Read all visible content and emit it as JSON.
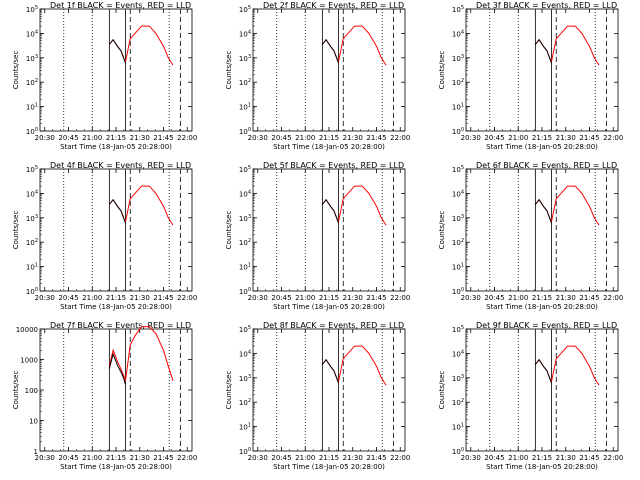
{
  "chart_data": {
    "type": "line",
    "ylabel": "Counts/sec",
    "yscale": "log",
    "x_ticks": [
      "20:30",
      "20:45",
      "21:00",
      "21:15",
      "21:30",
      "21:45",
      "22:00"
    ],
    "xlabel": "Start Time (18-Jan-05 20:28:00)",
    "colors": {
      "events": "#000000",
      "lld": "#ff0000"
    },
    "panels": [
      {
        "title": "Det 1f BLACK = Events, RED = LLD",
        "ylim": [
          1,
          100000
        ],
        "y_ticks": [
          "10^0",
          "10^1",
          "10^2",
          "10^3",
          "10^4",
          "10^5"
        ],
        "events": [
          [
            21.18,
            3500
          ],
          [
            21.22,
            5500
          ],
          [
            21.27,
            2800
          ],
          [
            21.3,
            2000
          ],
          [
            21.33,
            1000
          ],
          [
            21.35,
            600
          ]
        ],
        "lld": [
          [
            21.18,
            3500
          ],
          [
            21.22,
            5500
          ],
          [
            21.27,
            2800
          ],
          [
            21.3,
            2000
          ],
          [
            21.33,
            1000
          ],
          [
            21.35,
            700
          ],
          [
            21.4,
            6000
          ],
          [
            21.45,
            10000
          ],
          [
            21.52,
            20000
          ],
          [
            21.6,
            20000
          ],
          [
            21.67,
            10000
          ],
          [
            21.75,
            3000
          ],
          [
            21.8,
            1000
          ],
          [
            21.85,
            500
          ]
        ]
      },
      {
        "title": "Det 2f BLACK = Events, RED = LLD",
        "ylim": [
          1,
          100000
        ],
        "y_ticks": [
          "10^0",
          "10^1",
          "10^2",
          "10^3",
          "10^4",
          "10^5"
        ],
        "events": [
          [
            21.18,
            3500
          ],
          [
            21.22,
            5500
          ],
          [
            21.27,
            2800
          ],
          [
            21.3,
            2000
          ],
          [
            21.33,
            1000
          ],
          [
            21.35,
            600
          ]
        ],
        "lld": [
          [
            21.18,
            3500
          ],
          [
            21.22,
            5500
          ],
          [
            21.27,
            2800
          ],
          [
            21.3,
            2000
          ],
          [
            21.33,
            1000
          ],
          [
            21.35,
            700
          ],
          [
            21.4,
            6000
          ],
          [
            21.45,
            10000
          ],
          [
            21.52,
            20000
          ],
          [
            21.6,
            20000
          ],
          [
            21.67,
            10000
          ],
          [
            21.75,
            3000
          ],
          [
            21.8,
            1000
          ],
          [
            21.85,
            500
          ]
        ]
      },
      {
        "title": "Det 3f BLACK = Events, RED = LLD",
        "ylim": [
          1,
          100000
        ],
        "y_ticks": [
          "10^0",
          "10^1",
          "10^2",
          "10^3",
          "10^4",
          "10^5"
        ],
        "events": [
          [
            21.18,
            3500
          ],
          [
            21.22,
            5500
          ],
          [
            21.27,
            2800
          ],
          [
            21.3,
            2000
          ],
          [
            21.33,
            1000
          ],
          [
            21.35,
            600
          ]
        ],
        "lld": [
          [
            21.18,
            3500
          ],
          [
            21.22,
            5500
          ],
          [
            21.27,
            2800
          ],
          [
            21.3,
            2000
          ],
          [
            21.33,
            1000
          ],
          [
            21.35,
            700
          ],
          [
            21.4,
            6000
          ],
          [
            21.45,
            10000
          ],
          [
            21.52,
            20000
          ],
          [
            21.6,
            20000
          ],
          [
            21.67,
            10000
          ],
          [
            21.75,
            3000
          ],
          [
            21.8,
            1000
          ],
          [
            21.85,
            500
          ]
        ]
      },
      {
        "title": "Det 4f BLACK = Events, RED = LLD",
        "ylim": [
          1,
          100000
        ],
        "y_ticks": [
          "10^0",
          "10^1",
          "10^2",
          "10^3",
          "10^4",
          "10^5"
        ],
        "events": [
          [
            21.18,
            3500
          ],
          [
            21.22,
            5500
          ],
          [
            21.27,
            2800
          ],
          [
            21.3,
            2000
          ],
          [
            21.33,
            1000
          ],
          [
            21.35,
            600
          ]
        ],
        "lld": [
          [
            21.18,
            3500
          ],
          [
            21.22,
            5500
          ],
          [
            21.27,
            2800
          ],
          [
            21.3,
            2000
          ],
          [
            21.33,
            1000
          ],
          [
            21.35,
            700
          ],
          [
            21.4,
            6000
          ],
          [
            21.45,
            10000
          ],
          [
            21.52,
            20000
          ],
          [
            21.6,
            20000
          ],
          [
            21.67,
            10000
          ],
          [
            21.75,
            3000
          ],
          [
            21.8,
            1000
          ],
          [
            21.85,
            500
          ]
        ]
      },
      {
        "title": "Det 5f BLACK = Events, RED = LLD",
        "ylim": [
          1,
          100000
        ],
        "y_ticks": [
          "10^0",
          "10^1",
          "10^2",
          "10^3",
          "10^4",
          "10^5"
        ],
        "events": [
          [
            21.18,
            3500
          ],
          [
            21.22,
            5500
          ],
          [
            21.27,
            2800
          ],
          [
            21.3,
            2000
          ],
          [
            21.33,
            1000
          ],
          [
            21.35,
            600
          ]
        ],
        "lld": [
          [
            21.18,
            3500
          ],
          [
            21.22,
            5500
          ],
          [
            21.27,
            2800
          ],
          [
            21.3,
            2000
          ],
          [
            21.33,
            1000
          ],
          [
            21.35,
            700
          ],
          [
            21.4,
            6000
          ],
          [
            21.45,
            10000
          ],
          [
            21.52,
            20000
          ],
          [
            21.6,
            20000
          ],
          [
            21.67,
            10000
          ],
          [
            21.75,
            3000
          ],
          [
            21.8,
            1000
          ],
          [
            21.85,
            500
          ]
        ]
      },
      {
        "title": "Det 6f BLACK = Events, RED = LLD",
        "ylim": [
          1,
          100000
        ],
        "y_ticks": [
          "10^0",
          "10^1",
          "10^2",
          "10^3",
          "10^4",
          "10^5"
        ],
        "events": [
          [
            21.18,
            3500
          ],
          [
            21.22,
            5500
          ],
          [
            21.27,
            2800
          ],
          [
            21.3,
            2000
          ],
          [
            21.33,
            1000
          ],
          [
            21.35,
            600
          ]
        ],
        "lld": [
          [
            21.18,
            3500
          ],
          [
            21.22,
            5500
          ],
          [
            21.27,
            2800
          ],
          [
            21.3,
            2000
          ],
          [
            21.33,
            1000
          ],
          [
            21.35,
            700
          ],
          [
            21.4,
            6000
          ],
          [
            21.45,
            10000
          ],
          [
            21.52,
            20000
          ],
          [
            21.6,
            20000
          ],
          [
            21.67,
            10000
          ],
          [
            21.75,
            3000
          ],
          [
            21.8,
            1000
          ],
          [
            21.85,
            500
          ]
        ]
      },
      {
        "title": "Det 7f BLACK = Events, RED = LLD",
        "ylim": [
          1,
          10000
        ],
        "y_ticks": [
          "1",
          "10",
          "100",
          "1000",
          "10000"
        ],
        "events": [
          [
            21.18,
            500
          ],
          [
            21.22,
            1500
          ],
          [
            21.27,
            600
          ],
          [
            21.3,
            400
          ],
          [
            21.33,
            250
          ],
          [
            21.35,
            150
          ]
        ],
        "lld": [
          [
            21.18,
            600
          ],
          [
            21.22,
            2000
          ],
          [
            21.27,
            800
          ],
          [
            21.3,
            500
          ],
          [
            21.33,
            300
          ],
          [
            21.35,
            200
          ],
          [
            21.4,
            3000
          ],
          [
            21.45,
            6000
          ],
          [
            21.52,
            12000
          ],
          [
            21.6,
            12000
          ],
          [
            21.67,
            7000
          ],
          [
            21.75,
            2000
          ],
          [
            21.8,
            600
          ],
          [
            21.85,
            200
          ]
        ]
      },
      {
        "title": "Det 8f BLACK = Events, RED = LLD",
        "ylim": [
          1,
          100000
        ],
        "y_ticks": [
          "10^0",
          "10^1",
          "10^2",
          "10^3",
          "10^4",
          "10^5"
        ],
        "events": [
          [
            21.18,
            3500
          ],
          [
            21.22,
            5500
          ],
          [
            21.27,
            2800
          ],
          [
            21.3,
            2000
          ],
          [
            21.33,
            1000
          ],
          [
            21.35,
            600
          ]
        ],
        "lld": [
          [
            21.18,
            3500
          ],
          [
            21.22,
            5500
          ],
          [
            21.27,
            2800
          ],
          [
            21.3,
            2000
          ],
          [
            21.33,
            1000
          ],
          [
            21.35,
            700
          ],
          [
            21.4,
            6000
          ],
          [
            21.45,
            10000
          ],
          [
            21.52,
            20000
          ],
          [
            21.6,
            20000
          ],
          [
            21.67,
            10000
          ],
          [
            21.75,
            3000
          ],
          [
            21.8,
            1000
          ],
          [
            21.85,
            500
          ]
        ]
      },
      {
        "title": "Det 9f BLACK = Events, RED = LLD",
        "ylim": [
          1,
          100000
        ],
        "y_ticks": [
          "10^0",
          "10^1",
          "10^2",
          "10^3",
          "10^4",
          "10^5"
        ],
        "events": [
          [
            21.18,
            3500
          ],
          [
            21.22,
            5500
          ],
          [
            21.27,
            2800
          ],
          [
            21.3,
            2000
          ],
          [
            21.33,
            1000
          ],
          [
            21.35,
            600
          ]
        ],
        "lld": [
          [
            21.18,
            3500
          ],
          [
            21.22,
            5500
          ],
          [
            21.27,
            2800
          ],
          [
            21.3,
            2000
          ],
          [
            21.33,
            1000
          ],
          [
            21.35,
            700
          ],
          [
            21.4,
            6000
          ],
          [
            21.45,
            10000
          ],
          [
            21.52,
            20000
          ],
          [
            21.6,
            20000
          ],
          [
            21.67,
            10000
          ],
          [
            21.75,
            3000
          ],
          [
            21.8,
            1000
          ],
          [
            21.85,
            500
          ]
        ]
      }
    ]
  }
}
